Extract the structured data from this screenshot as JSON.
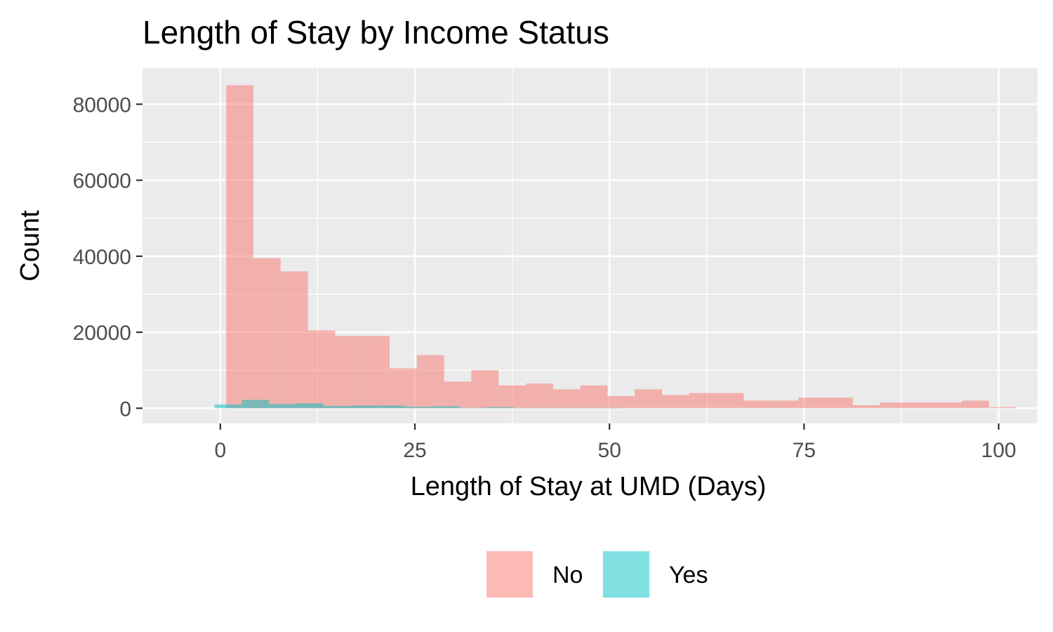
{
  "chart_data": {
    "type": "bar",
    "title": "Length of Stay by Income Status",
    "xlabel": "Length of Stay at UMD (Days)",
    "ylabel": "Count",
    "xlim": [
      -10,
      105
    ],
    "ylim": [
      -4000,
      89500
    ],
    "x_ticks": [
      "0",
      "25",
      "50",
      "75",
      "100"
    ],
    "y_ticks": [
      "0",
      "20000",
      "40000",
      "60000",
      "80000"
    ],
    "grid": true,
    "legend_position": "bottom",
    "series": [
      {
        "name": "No",
        "color": "#F8766D",
        "x": [
          2.5,
          6,
          9.5,
          13,
          16.5,
          20,
          23.5,
          27,
          30.5,
          34,
          37.5,
          41,
          44.5,
          48,
          51.5,
          55,
          58.5,
          62,
          65.5,
          69,
          72.5,
          76,
          79.5,
          83,
          86.5,
          90,
          93.5,
          97,
          100.5
        ],
        "values": [
          85000,
          39500,
          36000,
          20500,
          19000,
          19000,
          10500,
          14000,
          7000,
          10000,
          6000,
          6500,
          5000,
          6000,
          3200,
          5000,
          3500,
          4000,
          4000,
          2000,
          2000,
          2800,
          2800,
          800,
          1500,
          1500,
          1500,
          2000,
          300
        ]
      },
      {
        "name": "Yes",
        "color": "#00BFC4",
        "x": [
          1,
          4.5,
          8,
          11.5,
          15,
          18.5,
          22,
          25.5,
          29,
          32.5,
          36,
          39.5,
          43,
          46.5,
          50,
          53.5,
          57,
          60.5,
          64,
          67.5,
          71,
          74.5,
          78,
          81.5,
          85,
          88.5,
          92,
          95.5,
          99
        ],
        "values": [
          1000,
          2200,
          1100,
          1300,
          600,
          700,
          700,
          400,
          500,
          150,
          300,
          100,
          100,
          100,
          100,
          50,
          50,
          50,
          50,
          30,
          30,
          30,
          20,
          20,
          20,
          10,
          10,
          10,
          10
        ]
      }
    ],
    "bar_width": 3.5
  }
}
